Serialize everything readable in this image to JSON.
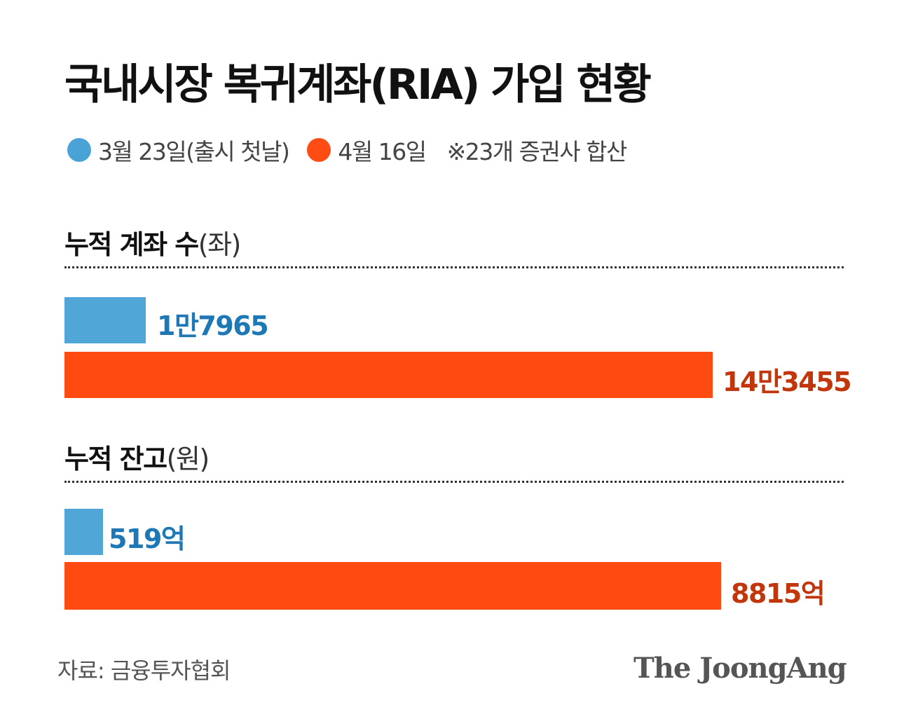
{
  "title": "국내시장 복귀계좌(RIA) 가입 현황",
  "legend": {
    "items": [
      {
        "label": "3월 23일(출시 첫날)",
        "color": "#4aa3d6"
      },
      {
        "label": "4월 16일",
        "color": "#ff4b14"
      }
    ],
    "note": "※23개 증권사 합산"
  },
  "sections": [
    {
      "title": "누적 계좌 수",
      "unit": "(좌)"
    },
    {
      "title": "누적 잔고",
      "unit": "(원)"
    }
  ],
  "chart_data": [
    {
      "type": "bar",
      "orientation": "horizontal",
      "title": "누적 계좌 수",
      "unit": "(좌)",
      "categories": [
        "3월 23일(출시 첫날)",
        "4월 16일"
      ],
      "values": [
        17965,
        143455
      ],
      "value_labels": [
        "1만7965",
        "14만3455"
      ],
      "colors": [
        "#50a7d7",
        "#ff4a12"
      ]
    },
    {
      "type": "bar",
      "orientation": "horizontal",
      "title": "누적 잔고",
      "unit": "(원)",
      "categories": [
        "3월 23일(출시 첫날)",
        "4월 16일"
      ],
      "values": [
        519,
        8815
      ],
      "value_labels": [
        "519억",
        "8815억"
      ],
      "colors": [
        "#50a7d7",
        "#ff4a12"
      ]
    }
  ],
  "footer": {
    "source": "자료: 금융투자협회",
    "logo": "The JoongAng"
  }
}
